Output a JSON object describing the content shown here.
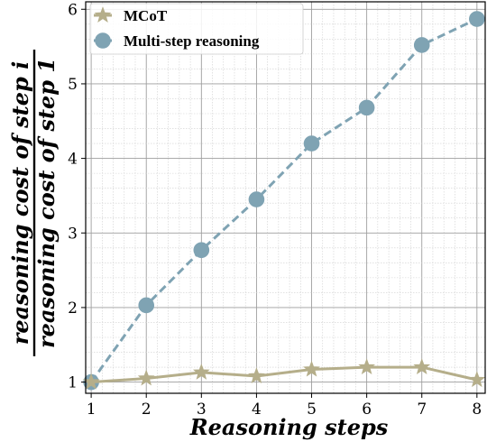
{
  "chart_data": {
    "type": "line",
    "xlabel": "Reasoning steps",
    "ylabel_numerator": "reasoning cost of step i",
    "ylabel_denominator": "reasoning cost of step 1",
    "x": [
      1,
      2,
      3,
      4,
      5,
      6,
      7,
      8
    ],
    "xlim": [
      0.9,
      8.15
    ],
    "ylim": [
      0.85,
      6.1
    ],
    "xticks": [
      "1",
      "2",
      "3",
      "4",
      "5",
      "6",
      "7",
      "8"
    ],
    "yticks": [
      "1",
      "2",
      "3",
      "4",
      "5",
      "6"
    ],
    "grid": true,
    "legend_position": "top-left",
    "series": [
      {
        "name": "MCoT",
        "values": [
          1.0,
          1.05,
          1.13,
          1.08,
          1.17,
          1.2,
          1.2,
          1.03
        ],
        "color": "#b5ae8a",
        "marker": "star",
        "line_style": "solid"
      },
      {
        "name": "Multi-step reasoning",
        "values": [
          1.0,
          2.03,
          2.77,
          3.45,
          4.2,
          4.68,
          5.52,
          5.87
        ],
        "color": "#7fa3b3",
        "marker": "circle",
        "line_style": "dashed"
      }
    ]
  }
}
